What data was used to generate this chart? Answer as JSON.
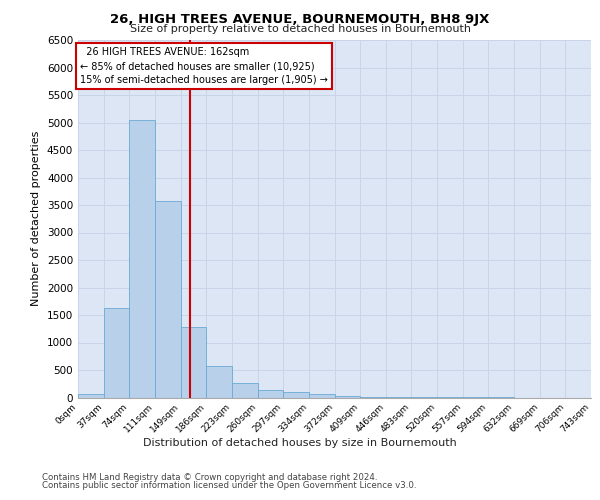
{
  "title": "26, HIGH TREES AVENUE, BOURNEMOUTH, BH8 9JX",
  "subtitle": "Size of property relative to detached houses in Bournemouth",
  "xlabel": "Distribution of detached houses by size in Bournemouth",
  "ylabel": "Number of detached properties",
  "footer_line1": "Contains HM Land Registry data © Crown copyright and database right 2024.",
  "footer_line2": "Contains public sector information licensed under the Open Government Licence v3.0.",
  "annotation_line1": "  26 HIGH TREES AVENUE: 162sqm  ",
  "annotation_line2": "← 85% of detached houses are smaller (10,925)",
  "annotation_line3": "15% of semi-detached houses are larger (1,905) →",
  "property_size": 162,
  "bin_edges": [
    0,
    37,
    74,
    111,
    149,
    186,
    223,
    260,
    297,
    334,
    372,
    409,
    446,
    483,
    520,
    557,
    594,
    632,
    669,
    706,
    743
  ],
  "bin_counts": [
    55,
    1620,
    5050,
    3580,
    1290,
    580,
    270,
    130,
    100,
    65,
    30,
    10,
    5,
    2,
    1,
    1,
    1,
    0,
    0,
    0
  ],
  "bar_color": "#b8d0ea",
  "bar_edge_color": "#6aaad4",
  "vline_color": "#cc0000",
  "annotation_box_color": "#cc0000",
  "grid_color": "#c8d4e8",
  "background_color": "#dce6f5",
  "ylim": [
    0,
    6500
  ],
  "yticks": [
    0,
    500,
    1000,
    1500,
    2000,
    2500,
    3000,
    3500,
    4000,
    4500,
    5000,
    5500,
    6000,
    6500
  ]
}
